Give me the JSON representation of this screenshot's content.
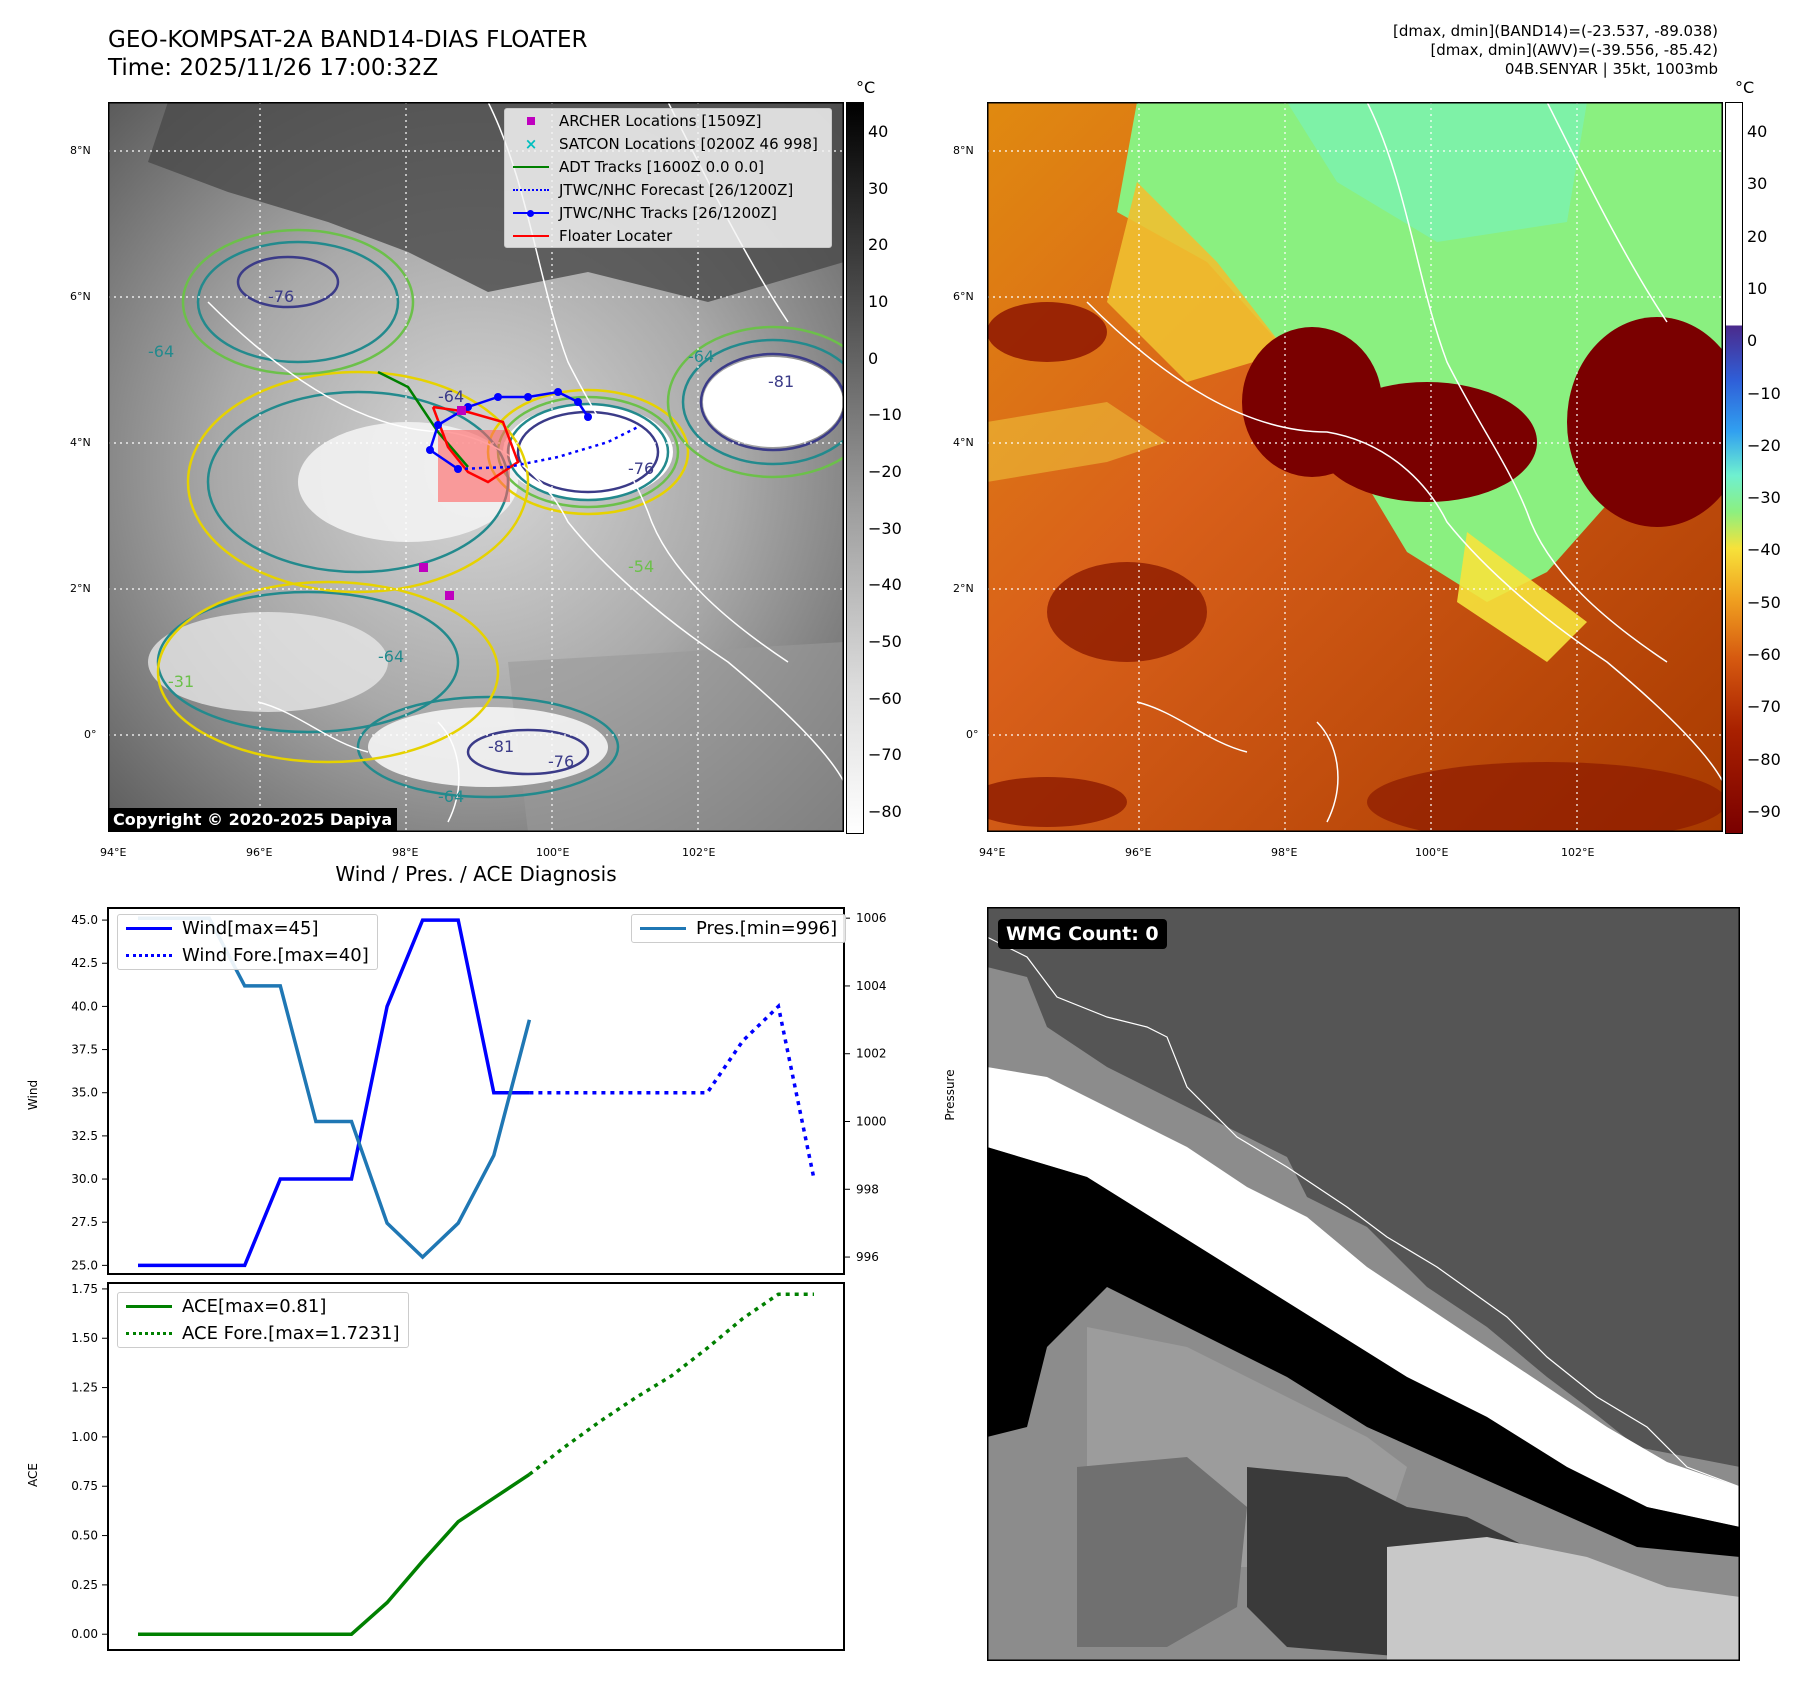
{
  "header": {
    "title_line1": "GEO-KOMPSAT-2A BAND14-DIAS FLOATER",
    "title_line2": "Time: 2025/11/26 17:00:32Z",
    "info_line1": "[dmax, dmin](BAND14)=(-23.537, -89.038)",
    "info_line2": "[dmax, dmin](AWV)=(-39.556, -85.42)",
    "info_line3": "04B.SENYAR | 35kt, 1003mb"
  },
  "map_axes": {
    "lat_labels": [
      "8°N",
      "6°N",
      "4°N",
      "2°N",
      "0°"
    ],
    "lon_labels": [
      "94°E",
      "96°E",
      "98°E",
      "100°E",
      "102°E"
    ]
  },
  "colorbar_left": {
    "unit": "°C",
    "ticks": [
      "40",
      "30",
      "20",
      "10",
      "0",
      "−10",
      "−20",
      "−30",
      "−40",
      "−50",
      "−60",
      "−70",
      "−80"
    ]
  },
  "colorbar_right": {
    "unit": "°C",
    "ticks": [
      "40",
      "30",
      "20",
      "10",
      "0",
      "−10",
      "−20",
      "−30",
      "−40",
      "−50",
      "−60",
      "−70",
      "−80",
      "−90"
    ]
  },
  "map_legend": [
    {
      "label": "ARCHER Locations [1509Z]",
      "color": "#bf00bf",
      "kind": "square"
    },
    {
      "label": "SATCON Locations [0200Z 46 998]",
      "color": "#00bfbf",
      "kind": "x"
    },
    {
      "label": "ADT Tracks [1600Z 0.0 0.0]",
      "color": "#008000",
      "kind": "line"
    },
    {
      "label": "JTWC/NHC Forecast [26/1200Z]",
      "color": "#0000ff",
      "kind": "dotted"
    },
    {
      "label": "JTWC/NHC Tracks [26/1200Z]",
      "color": "#0000ff",
      "kind": "line-dot"
    },
    {
      "label": "Floater Locater",
      "color": "#ff0000",
      "kind": "line"
    }
  ],
  "map_contour_labels": [
    "-54",
    "-64",
    "-76",
    "-81",
    "-31"
  ],
  "copyright": "Copyright © 2020-2025 Dapiya",
  "wmg": {
    "label": "WMG Count: 0"
  },
  "colors": {
    "wind": "#0000ff",
    "pressure": "#1f77b4",
    "ace": "#008000"
  },
  "chart_data": [
    {
      "type": "line",
      "title": "Wind / Pres. / ACE Diagnosis",
      "ylabel": "Wind",
      "ylabel_right": "Pressure",
      "x": [
        0,
        1,
        2,
        3,
        4,
        5,
        6,
        7,
        8,
        9,
        10,
        11,
        12,
        13,
        14,
        15,
        16,
        17,
        18,
        19
      ],
      "ylim": [
        24.5,
        45.7
      ],
      "ylim_right": [
        995.5,
        1006.3
      ],
      "yticks": [
        "45.0",
        "42.5",
        "40.0",
        "37.5",
        "35.0",
        "32.5",
        "30.0",
        "27.5",
        "25.0"
      ],
      "yticks_right": [
        "1006",
        "1004",
        "1002",
        "1000",
        "998",
        "996"
      ],
      "legend_left": [
        "Wind[max=45]",
        "Wind Fore.[max=40]"
      ],
      "legend_right": [
        "Pres.[min=996]"
      ],
      "series": [
        {
          "name": "Wind[max=45]",
          "axis": "left",
          "style": "solid",
          "x": [
            0,
            1,
            2,
            3,
            4,
            5,
            6,
            7,
            8,
            9,
            10,
            11
          ],
          "values": [
            25,
            25,
            25,
            25,
            30,
            30,
            30,
            40,
            45,
            45,
            35,
            35
          ]
        },
        {
          "name": "Wind Fore.[max=40]",
          "axis": "left",
          "style": "dotted",
          "x": [
            11,
            12,
            13,
            14,
            15,
            16,
            17,
            18,
            19
          ],
          "values": [
            35,
            35,
            35,
            35,
            35,
            35,
            38,
            40,
            30
          ]
        },
        {
          "name": "Pres.[min=996]",
          "axis": "right",
          "style": "solid",
          "x": [
            0,
            1,
            2,
            3,
            4,
            5,
            6,
            7,
            8,
            9,
            10,
            11
          ],
          "values": [
            1006,
            1006,
            1006,
            1004,
            1004,
            1000,
            1000,
            997,
            996,
            997,
            999,
            1003
          ]
        }
      ]
    },
    {
      "type": "line",
      "ylabel": "ACE",
      "x": [
        0,
        1,
        2,
        3,
        4,
        5,
        6,
        7,
        8,
        9,
        10,
        11,
        12,
        13,
        14,
        15,
        16,
        17,
        18,
        19
      ],
      "ylim": [
        -0.08,
        1.78
      ],
      "yticks": [
        "1.75",
        "1.50",
        "1.25",
        "1.00",
        "0.75",
        "0.50",
        "0.25",
        "0.00"
      ],
      "legend": [
        "ACE[max=0.81]",
        "ACE Fore.[max=1.7231]"
      ],
      "series": [
        {
          "name": "ACE[max=0.81]",
          "style": "solid",
          "x": [
            0,
            1,
            2,
            3,
            4,
            5,
            6,
            7,
            8,
            9,
            10,
            11
          ],
          "values": [
            0,
            0,
            0,
            0,
            0,
            0,
            0,
            0.16,
            0.37,
            0.57,
            0.69,
            0.81
          ]
        },
        {
          "name": "ACE Fore.[max=1.7231]",
          "style": "dotted",
          "x": [
            11,
            12,
            13,
            14,
            15,
            16,
            17,
            18,
            19
          ],
          "values": [
            0.81,
            0.95,
            1.08,
            1.2,
            1.31,
            1.45,
            1.6,
            1.7231,
            1.7231
          ]
        }
      ]
    }
  ]
}
